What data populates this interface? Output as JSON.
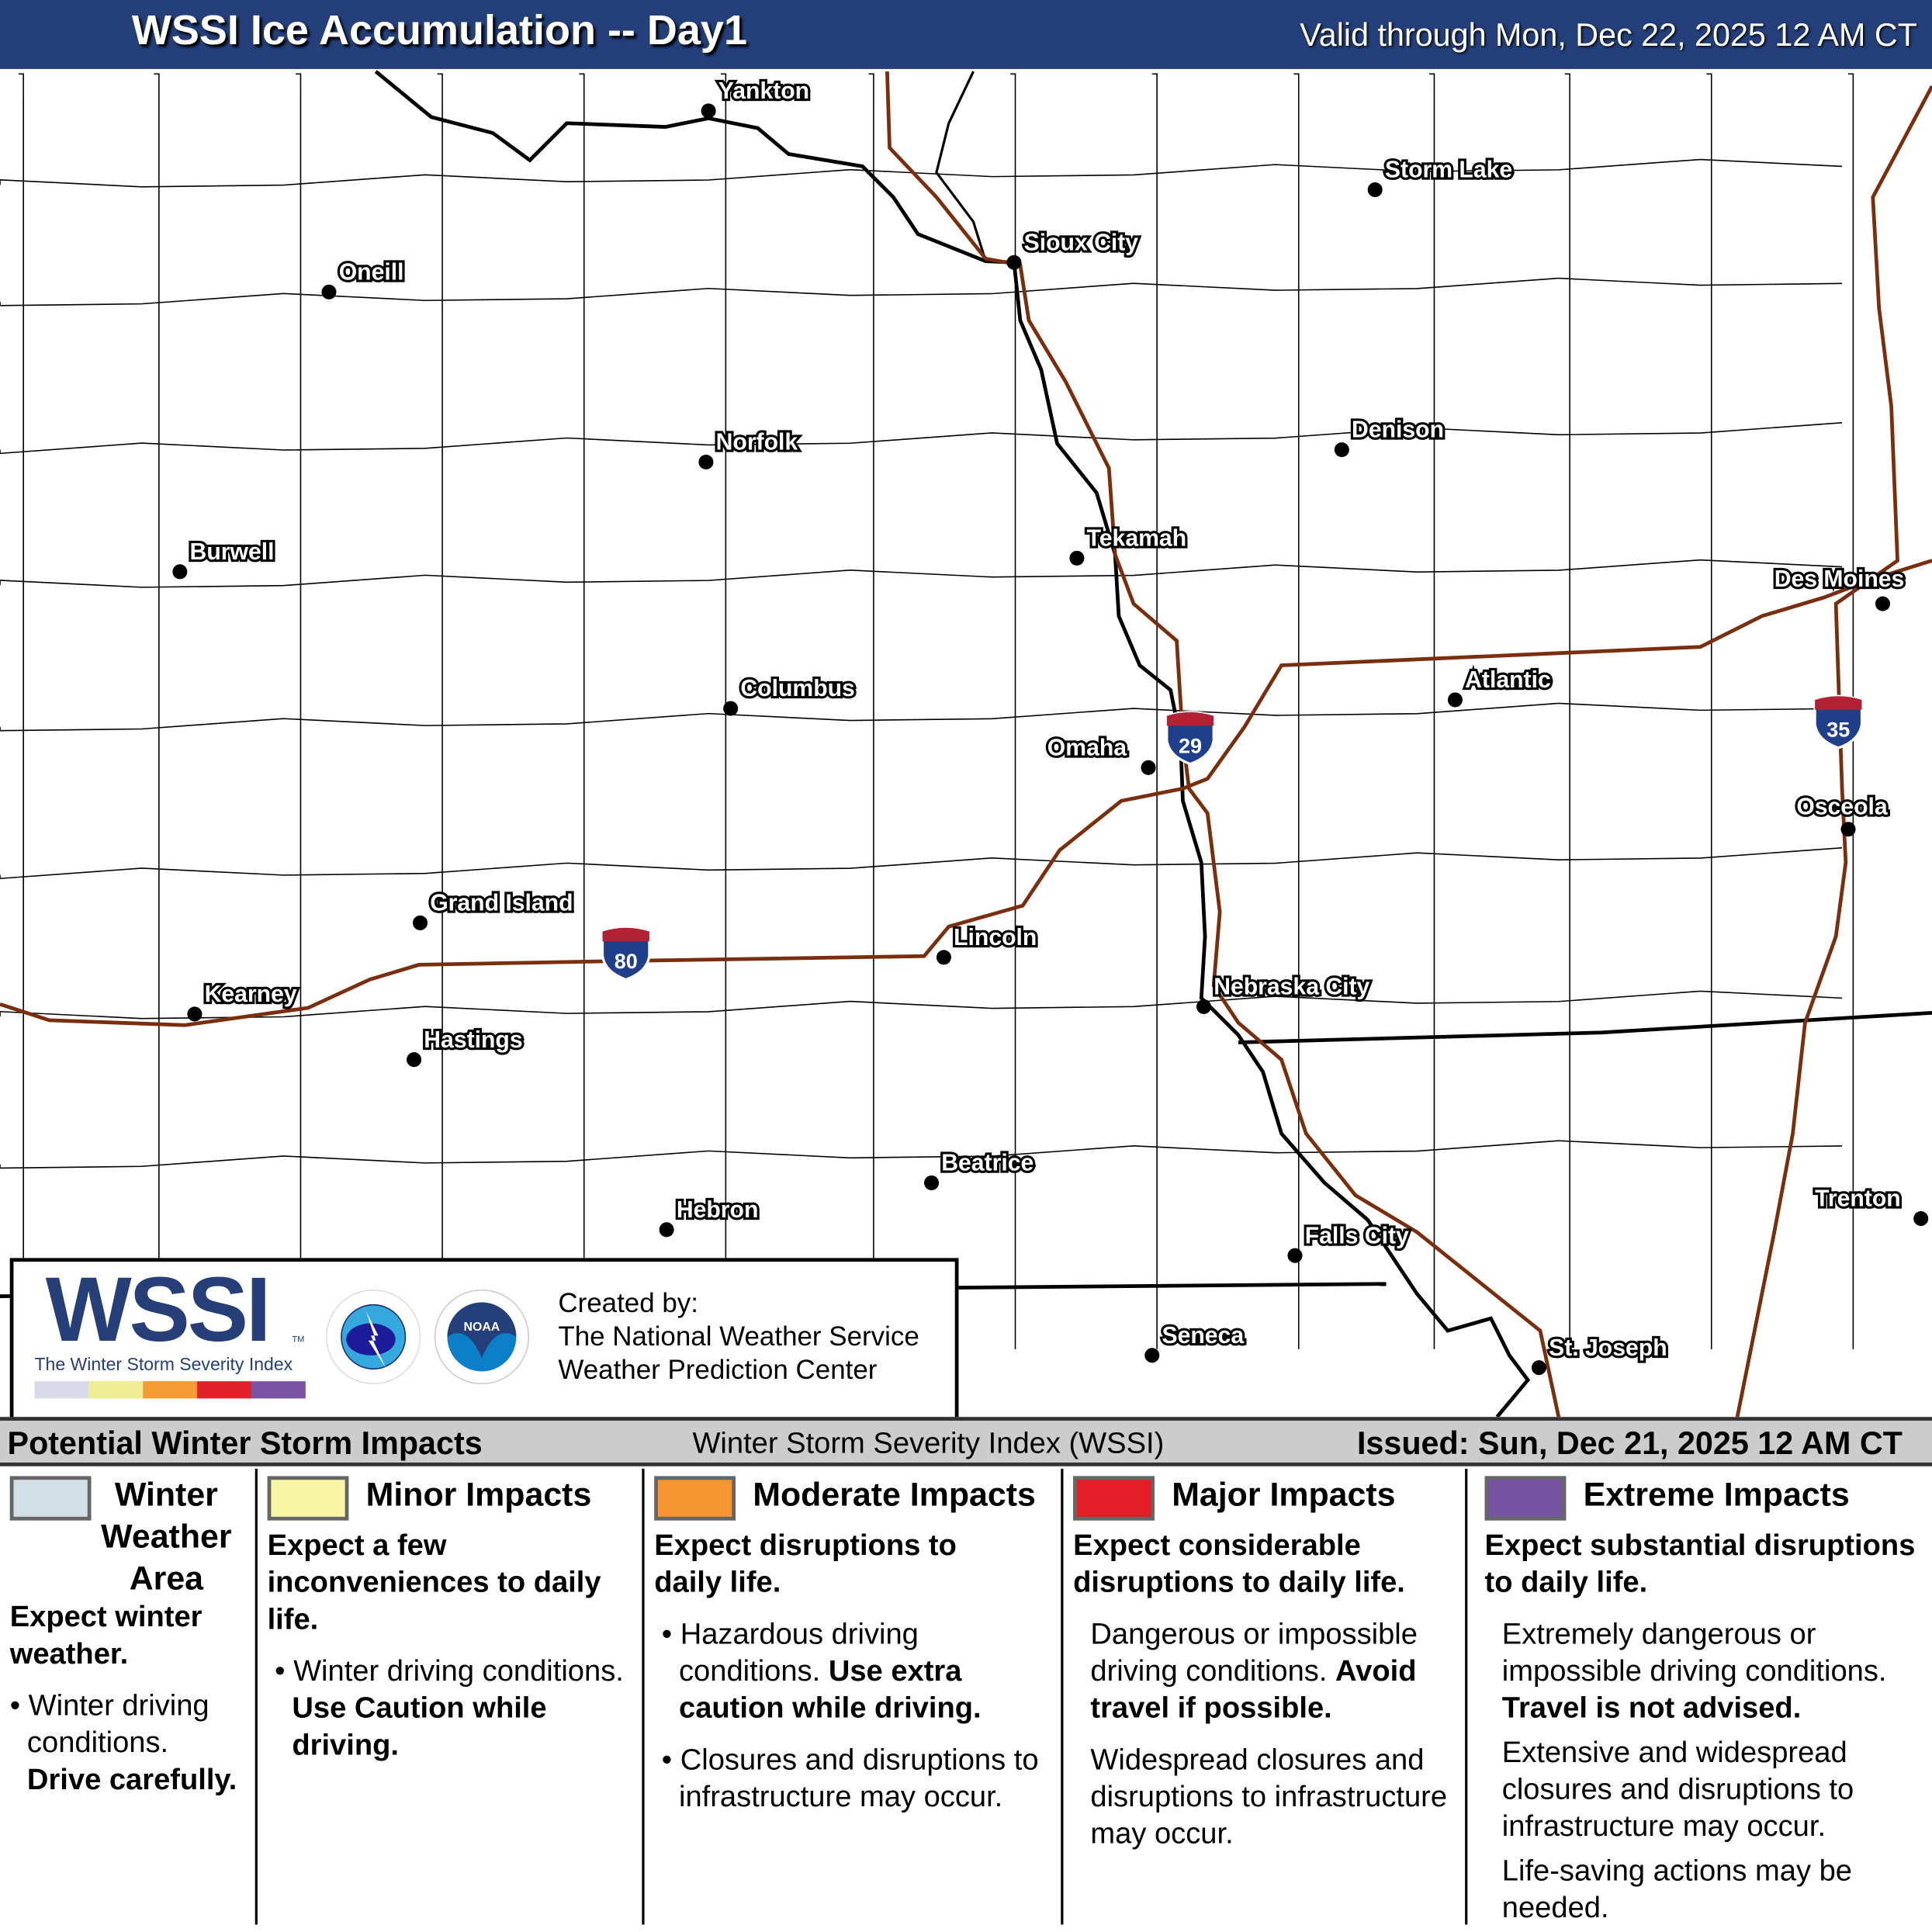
{
  "header": {
    "title": "WSSI Ice Accumulation -- Day1",
    "valid": "Valid through Mon, Dec 22, 2025 12 AM CT"
  },
  "map": {
    "cities": [
      "Yankton",
      "Storm Lake",
      "Sioux City",
      "Oneill",
      "Norfolk",
      "Denison",
      "Burwell",
      "Tekamah",
      "Des Moines",
      "Atlantic",
      "Columbus",
      "Omaha",
      "Osceola",
      "Grand Island",
      "Lincoln",
      "Kearney",
      "Nebraska City",
      "Hastings",
      "Beatrice",
      "Trenton",
      "Hebron",
      "Falls City",
      "Seneca",
      "St. Joseph"
    ],
    "interstates": [
      "29",
      "35",
      "80"
    ],
    "colors": {
      "state_border": "#000000",
      "county_border": "#000000",
      "interstate": "#7a2e0e",
      "shield_blue": "#1f3f8a",
      "shield_red": "#b22234"
    }
  },
  "logo": {
    "wordmark": "WSSI",
    "tm": "TM",
    "subtitle": "The Winter Storm Severity Index",
    "colors": [
      "#d9d9e8",
      "#eded94",
      "#f59b34",
      "#e3212a",
      "#7b52a3"
    ],
    "nws_text": "NATIONAL WEATHER SERVICE",
    "noaa_text": "NOAA",
    "created_by": "Created by:",
    "org1": "The National Weather Service",
    "org2": "Weather Prediction Center"
  },
  "legend": {
    "left": "Potential Winter Storm Impacts",
    "center": "Winter Storm Severity Index (WSSI)",
    "issued": "Issued: Sun, Dec 21, 2025 12 AM CT",
    "categories": [
      {
        "title": "Winter Weather Area",
        "color": "#d3dfe6",
        "summary": "Expect winter weather.",
        "b1": "Winter driving conditions.",
        "b1_bold": "Drive carefully."
      },
      {
        "title": "Minor Impacts",
        "color": "#f8f5a4",
        "summary": "Expect a few inconveniences to daily life.",
        "b1": "Winter driving conditions.",
        "b1_bold": "Use Caution while driving."
      },
      {
        "title": "Moderate Impacts",
        "color": "#f7962f",
        "summary": "Expect disruptions to daily life.",
        "b1": "Hazardous driving conditions.",
        "b1_bold": "Use extra caution while driving.",
        "b2": "Closures and disruptions to infrastructure may occur."
      },
      {
        "title": "Major Impacts",
        "color": "#e31e26",
        "summary": "Expect considerable disruptions to daily life.",
        "b1": "Dangerous or impossible driving conditions.",
        "b1_bold": "Avoid travel if possible.",
        "b2": "Widespread closures and disruptions to infrastructure may occur."
      },
      {
        "title": "Extreme Impacts",
        "color": "#7653a0",
        "summary": "Expect substantial disruptions to daily life.",
        "b1": "Extremely dangerous or impossible driving conditions.",
        "b1_bold": "Travel is not advised.",
        "b2": "Extensive and widespread closures and disruptions to infrastructure may occur.",
        "b3": "Life-saving actions may be needed."
      }
    ]
  }
}
